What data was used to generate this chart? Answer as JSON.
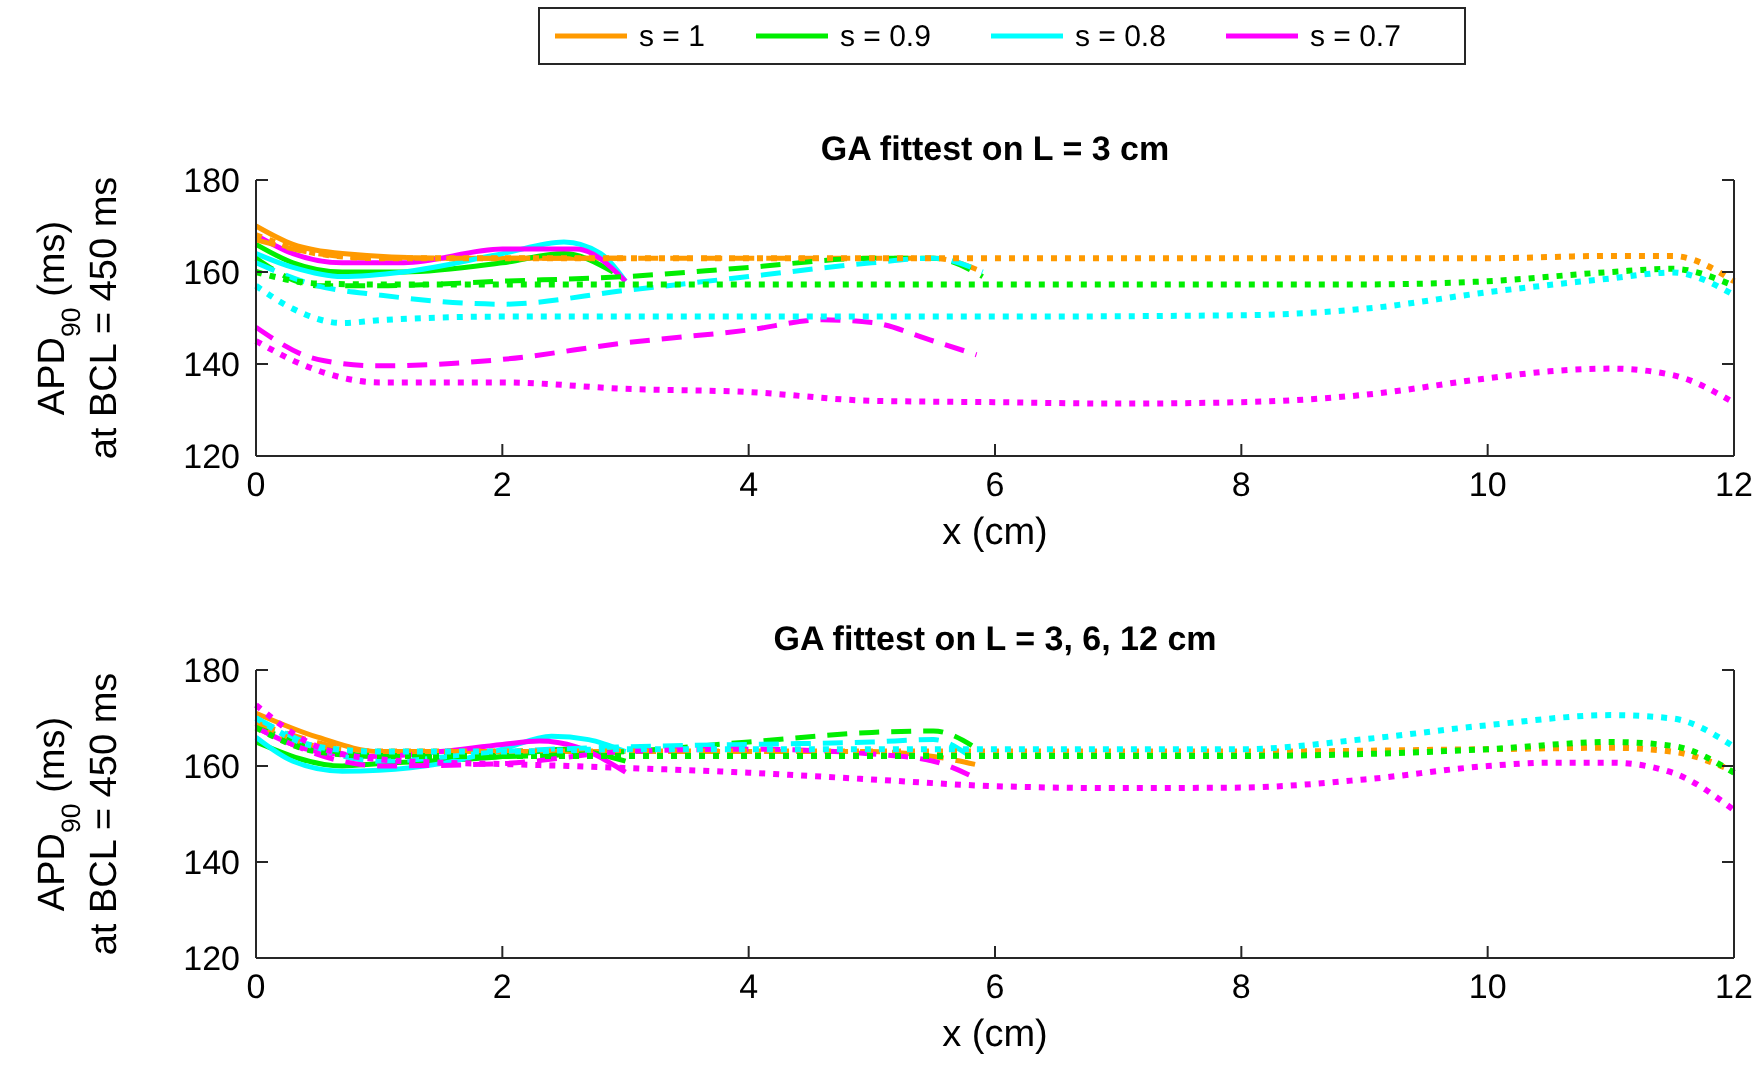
{
  "chart_data": [
    {
      "type": "line",
      "title": "GA fittest on L = 3 cm",
      "xlabel": "x (cm)",
      "ylabel": "APD$_{90}$ (ms)\nat BCL = 450 ms",
      "xlim": [
        0,
        12
      ],
      "xticks": [
        0,
        2,
        4,
        6,
        8,
        10,
        12
      ],
      "ylim": [
        120,
        180
      ],
      "yticks": [
        120,
        140,
        160,
        180
      ],
      "grid": false,
      "legend": "top",
      "series": [
        {
          "name": "s = 1",
          "color": "#ff9a00",
          "line_style": "solid",
          "x": [
            0,
            0.3,
            0.7,
            1.5,
            2,
            2.5,
            3
          ],
          "values": [
            170,
            166,
            164,
            163,
            163,
            163,
            163
          ]
        },
        {
          "name": "s = 0.9",
          "color": "#00ee00",
          "line_style": "solid",
          "x": [
            0,
            0.3,
            0.7,
            1.2,
            2,
            2.5,
            2.9
          ],
          "values": [
            166,
            162,
            160,
            160,
            162,
            164,
            160
          ]
        },
        {
          "name": "s = 0.8",
          "color": "#00ffff",
          "line_style": "solid",
          "x": [
            0,
            0.3,
            0.7,
            1.2,
            2,
            2.5,
            2.8,
            3
          ],
          "values": [
            164,
            161,
            159,
            160,
            164,
            166.5,
            164,
            158
          ]
        },
        {
          "name": "s = 0.7",
          "color": "#ff00ff",
          "line_style": "solid",
          "x": [
            0,
            0.3,
            0.7,
            1.2,
            2,
            2.6,
            3
          ],
          "values": [
            168,
            164,
            162,
            162,
            165,
            165,
            158
          ]
        },
        {
          "color": "#ff9a00",
          "line_style": "dashed",
          "x": [
            0,
            0.5,
            1,
            2,
            3,
            4,
            5,
            5.5,
            5.9
          ],
          "values": [
            167,
            164,
            163,
            163,
            163,
            163,
            163,
            163,
            160
          ]
        },
        {
          "color": "#00ee00",
          "line_style": "dashed",
          "x": [
            0,
            0.5,
            1,
            2,
            3,
            4,
            5,
            5.5,
            5.9
          ],
          "values": [
            163,
            157,
            157,
            158,
            159,
            161,
            163,
            163,
            159
          ]
        },
        {
          "color": "#00ffff",
          "line_style": "dashed",
          "x": [
            0,
            0.5,
            1,
            2,
            3,
            4,
            5,
            5.5,
            5.9
          ],
          "values": [
            162,
            157,
            155,
            153,
            156,
            159,
            162,
            163,
            160
          ]
        },
        {
          "color": "#ff00ff",
          "line_style": "dashed",
          "x": [
            0,
            0.5,
            1,
            2,
            3,
            4,
            4.6,
            5,
            5.5,
            5.85
          ],
          "values": [
            148,
            141,
            139.6,
            141,
            144.6,
            147.4,
            149.6,
            149,
            145,
            142
          ]
        },
        {
          "color": "#ff9a00",
          "line_style": "dotted",
          "x": [
            0,
            0.5,
            1,
            2,
            4,
            6,
            8,
            10,
            11,
            11.5,
            12
          ],
          "values": [
            168,
            164,
            163,
            163,
            163,
            163,
            163,
            163,
            163.5,
            163.5,
            158
          ]
        },
        {
          "color": "#00ee00",
          "line_style": "dotted",
          "x": [
            0,
            0.5,
            1,
            2,
            4,
            6,
            8,
            9,
            10,
            11,
            11.5,
            12
          ],
          "values": [
            160,
            157.5,
            157.3,
            157.3,
            157.3,
            157.3,
            157.3,
            157.3,
            158,
            160,
            160.7,
            157
          ]
        },
        {
          "color": "#00ffff",
          "line_style": "dotted",
          "x": [
            0,
            0.3,
            0.7,
            1,
            2,
            4,
            6,
            8,
            9,
            10,
            11,
            11.5,
            12
          ],
          "values": [
            157,
            152,
            148.9,
            149.5,
            150.3,
            150.3,
            150.3,
            150.6,
            152,
            155.6,
            158.6,
            159.9,
            155
          ]
        },
        {
          "color": "#ff00ff",
          "line_style": "dotted",
          "x": [
            0,
            0.4,
            1,
            2,
            3,
            4,
            5,
            6,
            7,
            8,
            9,
            10,
            10.5,
            11,
            11.5,
            12
          ],
          "values": [
            145,
            139.6,
            136,
            136,
            134.6,
            133.9,
            132,
            131.7,
            131.4,
            131.7,
            133.3,
            136.9,
            138.4,
            139,
            137.6,
            131.6
          ]
        }
      ]
    },
    {
      "type": "line",
      "title": "GA fittest on L = 3, 6, 12 cm",
      "xlabel": "x (cm)",
      "ylabel": "APD$_{90}$ (ms)\nat BCL = 450 ms",
      "xlim": [
        0,
        12
      ],
      "xticks": [
        0,
        2,
        4,
        6,
        8,
        10,
        12
      ],
      "ylim": [
        120,
        180
      ],
      "yticks": [
        120,
        140,
        160,
        180
      ],
      "grid": false,
      "series": [
        {
          "color": "#ff9a00",
          "line_style": "solid",
          "x": [
            0,
            0.5,
            1,
            2,
            3
          ],
          "values": [
            171,
            166,
            163,
            163,
            163
          ]
        },
        {
          "color": "#00ee00",
          "line_style": "solid",
          "x": [
            0,
            0.7,
            1,
            2,
            2.5,
            3
          ],
          "values": [
            165,
            160,
            160.5,
            162,
            163.5,
            161
          ]
        },
        {
          "color": "#00ffff",
          "line_style": "solid",
          "x": [
            0,
            0.3,
            0.7,
            1,
            1.5,
            2,
            2.4,
            2.7,
            3
          ],
          "values": [
            166,
            161,
            158.9,
            159.1,
            160.5,
            163.5,
            166.2,
            165.5,
            163
          ]
        },
        {
          "color": "#ff00ff",
          "line_style": "solid",
          "x": [
            0,
            0.5,
            1,
            1.5,
            2,
            2.3,
            2.6,
            3
          ],
          "values": [
            168,
            163,
            162,
            163,
            164.5,
            165.2,
            164,
            158.7
          ]
        },
        {
          "color": "#ff9a00",
          "line_style": "dashed",
          "x": [
            0,
            1,
            2,
            3,
            4,
            5,
            5.5,
            5.9
          ],
          "values": [
            169,
            163,
            163,
            163,
            163,
            163,
            162,
            160
          ]
        },
        {
          "color": "#00ee00",
          "line_style": "dashed",
          "x": [
            0,
            1,
            2,
            3,
            4,
            5,
            5.5,
            5.9
          ],
          "values": [
            168,
            162,
            162,
            163,
            165,
            167,
            167.3,
            162.8
          ]
        },
        {
          "color": "#00ffff",
          "line_style": "dashed",
          "x": [
            0,
            1,
            2,
            3,
            4,
            5,
            5.5,
            5.8
          ],
          "values": [
            170,
            161,
            163,
            164,
            164.5,
            165,
            165.5,
            162
          ]
        },
        {
          "color": "#ff00ff",
          "line_style": "dashed",
          "x": [
            0,
            0.7,
            1,
            2,
            3,
            4,
            5,
            5.5,
            5.8
          ],
          "values": [
            168,
            161,
            160,
            160.5,
            163,
            163.5,
            162.5,
            161,
            158
          ]
        },
        {
          "color": "#ff9a00",
          "line_style": "dotted",
          "x": [
            0,
            0.5,
            1,
            2,
            4,
            6,
            8,
            10,
            11,
            11.5,
            12
          ],
          "values": [
            169,
            164,
            163,
            163,
            163,
            163,
            163,
            163.5,
            163.8,
            163,
            158.9
          ]
        },
        {
          "color": "#00ee00",
          "line_style": "dotted",
          "x": [
            0,
            0.5,
            1,
            2,
            4,
            6,
            8,
            10,
            11,
            11.5,
            12
          ],
          "values": [
            168,
            163,
            162.1,
            162.1,
            162.1,
            162.1,
            162.1,
            163.5,
            165,
            164.2,
            158.6
          ]
        },
        {
          "color": "#00ffff",
          "line_style": "dotted",
          "x": [
            0,
            0.5,
            1,
            2,
            3,
            4,
            6,
            8,
            9,
            10,
            11,
            11.5,
            12
          ],
          "values": [
            170,
            164,
            163,
            163,
            163.5,
            163.5,
            163.5,
            163.5,
            165.6,
            168.5,
            170.6,
            169.9,
            164
          ]
        },
        {
          "color": "#ff00ff",
          "line_style": "dotted",
          "x": [
            0,
            0.5,
            1,
            1.5,
            2,
            3,
            4,
            5,
            6,
            7,
            8,
            9,
            10,
            10.5,
            11,
            11.5,
            12
          ],
          "values": [
            172.7,
            164,
            161.4,
            160.7,
            160.4,
            159.6,
            158.6,
            157.2,
            155.8,
            155.4,
            155.5,
            157.2,
            160,
            160.7,
            160.7,
            158.6,
            150.8
          ]
        }
      ]
    }
  ]
}
